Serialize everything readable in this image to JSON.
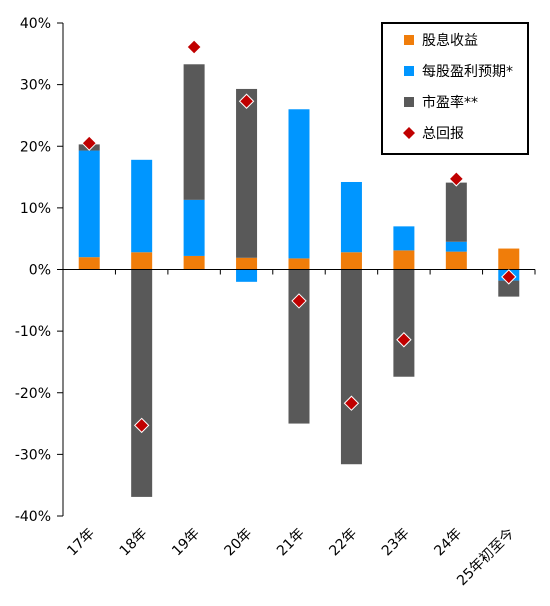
{
  "chart_data": {
    "type": "bar",
    "stacked": true,
    "title": "",
    "xlabel": "",
    "ylabel": "",
    "ylim": [
      -40,
      40
    ],
    "yticks": [
      40,
      30,
      20,
      10,
      0,
      -10,
      -20,
      -30,
      -40
    ],
    "ytick_labels": [
      "40%",
      "30%",
      "20%",
      "10%",
      "0%",
      "-10%",
      "-20%",
      "-30%",
      "-40%"
    ],
    "categories": [
      "17年",
      "18年",
      "19年",
      "20年",
      "21年",
      "22年",
      "23年",
      "24年",
      "25年初至今"
    ],
    "series": [
      {
        "name": "股息收益",
        "type": "bar",
        "color": "#F07D0A",
        "values": [
          2.0,
          2.8,
          2.2,
          1.9,
          1.8,
          2.8,
          3.1,
          2.9,
          3.4
        ]
      },
      {
        "name": "每股盈利预期*",
        "type": "bar",
        "color": "#0096FF",
        "values": [
          17.3,
          15.0,
          9.1,
          -2.0,
          24.2,
          11.4,
          3.9,
          1.6,
          -1.8
        ]
      },
      {
        "name": "市盈率**",
        "type": "bar",
        "color": "#595959",
        "values": [
          1.0,
          -36.9,
          22.0,
          27.4,
          -25.0,
          -31.6,
          -17.4,
          9.6,
          -2.6
        ]
      },
      {
        "name": "总回报",
        "type": "marker",
        "color": "#C00000",
        "values": [
          20.5,
          -25.3,
          36.1,
          27.3,
          -5.1,
          -21.7,
          -11.4,
          14.7,
          -1.2
        ]
      }
    ],
    "legend_position": "top-right",
    "grid": false
  }
}
